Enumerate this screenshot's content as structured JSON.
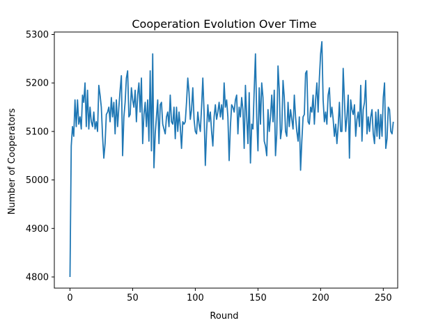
{
  "chart_data": {
    "type": "line",
    "title": "Cooperation Evolution Over Time",
    "xlabel": "Round",
    "ylabel": "Number of Cooperators",
    "xlim": [
      -12.5,
      261.5
    ],
    "ylim": [
      4777,
      5305
    ],
    "x_ticks": [
      0,
      50,
      100,
      150,
      200,
      250
    ],
    "y_ticks": [
      4800,
      4900,
      5000,
      5100,
      5200,
      5300
    ],
    "grid": false,
    "legend": "none",
    "series": [
      {
        "color": "#1f77b4",
        "x_start": 0,
        "x_step": 1,
        "values": [
          4800,
          5070,
          5110,
          5090,
          5165,
          5110,
          5165,
          5115,
          5130,
          5105,
          5175,
          5160,
          5200,
          5110,
          5185,
          5105,
          5150,
          5120,
          5110,
          5140,
          5105,
          5120,
          5100,
          5195,
          5175,
          5150,
          5090,
          5045,
          5075,
          5135,
          5140,
          5150,
          5120,
          5170,
          5130,
          5160,
          5095,
          5165,
          5110,
          5150,
          5185,
          5215,
          5050,
          5130,
          5160,
          5210,
          5225,
          5130,
          5135,
          5190,
          5165,
          5150,
          5185,
          5120,
          5175,
          5200,
          5140,
          5210,
          5075,
          5135,
          5160,
          5110,
          5165,
          5080,
          5225,
          5060,
          5260,
          5025,
          5095,
          5130,
          5165,
          5075,
          5155,
          5160,
          5115,
          5105,
          5095,
          5130,
          5140,
          5110,
          5175,
          5120,
          5115,
          5150,
          5085,
          5150,
          5100,
          5140,
          5110,
          5065,
          5120,
          5115,
          5120,
          5160,
          5210,
          5180,
          5125,
          5145,
          5190,
          5125,
          5100,
          5095,
          5140,
          5115,
          5100,
          5150,
          5210,
          5140,
          5030,
          5100,
          5155,
          5120,
          5140,
          5100,
          5070,
          5130,
          5155,
          5125,
          5140,
          5160,
          5130,
          5155,
          5125,
          5200,
          5150,
          5165,
          5130,
          5040,
          5110,
          5155,
          5150,
          5140,
          5165,
          5175,
          5095,
          5150,
          5130,
          5170,
          5145,
          5065,
          5195,
          5130,
          5075,
          5180,
          5035,
          5115,
          5105,
          5185,
          5260,
          5130,
          5060,
          5190,
          5115,
          5200,
          5170,
          5080,
          5070,
          5050,
          5145,
          5100,
          5130,
          5175,
          5120,
          5185,
          5050,
          5095,
          5235,
          5185,
          5085,
          5105,
          5205,
          5170,
          5100,
          5090,
          5160,
          5110,
          5145,
          5125,
          5105,
          5175,
          5130,
          5100,
          5080,
          5130,
          5020,
          5080,
          5130,
          5135,
          5220,
          5225,
          5120,
          5115,
          5150,
          5140,
          5175,
          5115,
          5165,
          5200,
          5140,
          5210,
          5260,
          5285,
          5165,
          5120,
          5140,
          5115,
          5175,
          5190,
          5130,
          5150,
          5125,
          5090,
          5115,
          5075,
          5110,
          5160,
          5100,
          5100,
          5230,
          5165,
          5100,
          5130,
          5175,
          5045,
          5165,
          5145,
          5135,
          5155,
          5090,
          5125,
          5140,
          5110,
          5195,
          5080,
          5145,
          5160,
          5205,
          5095,
          5130,
          5100,
          5130,
          5145,
          5095,
          5075,
          5140,
          5090,
          5145,
          5085,
          5135,
          5090,
          5170,
          5200,
          5065,
          5085,
          5150,
          5145,
          5100,
          5095,
          5120
        ]
      }
    ]
  }
}
